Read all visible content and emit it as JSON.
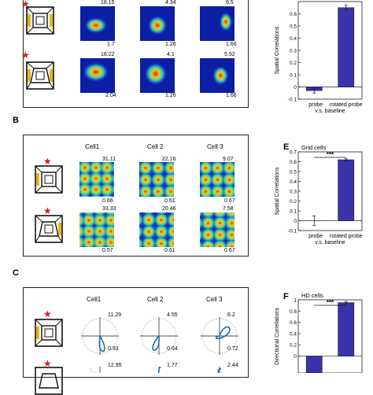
{
  "panels": {
    "A": {
      "label": "",
      "rows": [
        {
          "peaks": [
            "18.15",
            "4.34",
            "6.5"
          ],
          "mins": [
            "1.7",
            "1.26",
            "1.66"
          ]
        },
        {
          "peaks": [
            "16.22",
            "4.1",
            "5.92"
          ],
          "mins": [
            "2.04",
            "1.26",
            "1.66"
          ]
        }
      ]
    },
    "B": {
      "label": "B",
      "cells": [
        "Cell1",
        "Cell 2",
        "Cell 3"
      ],
      "rows": [
        {
          "peaks": [
            "31.11",
            "22.16",
            "9.07"
          ],
          "mins": [
            "0.66",
            "0.61",
            "0.67"
          ]
        },
        {
          "peaks": [
            "33.33",
            "20.46",
            "7.58"
          ],
          "mins": [
            "0.57",
            "0.61",
            "0.67"
          ]
        }
      ]
    },
    "C": {
      "label": "C",
      "cells": [
        "Cell1",
        "Cell 2",
        "Cell 3"
      ],
      "rows": [
        {
          "peaks": [
            "11.29",
            "4.55",
            "6.2"
          ],
          "mins": [
            "0.93",
            "0.64",
            "0.72"
          ]
        },
        {
          "peaks": [
            "12.95",
            "1.77",
            "2.44"
          ],
          "mins": []
        }
      ]
    },
    "D": {
      "ylabel": "Spatial Correlations",
      "xlabel_line1": "probe",
      "xlabel_line1b": "rotated probe",
      "xlabel_line2": "v.s. baseline"
    },
    "E": {
      "label": "E",
      "title": "Grid cells",
      "sig": "***",
      "ylabel": "Spatial Correlations",
      "xlabel_line1": "probe",
      "xlabel_line1b": "rotated probe",
      "xlabel_line2": "v.s. baseline"
    },
    "F": {
      "label": "F",
      "title": "HD cells",
      "sig": "***",
      "ylabel": "Directional Correlations"
    }
  },
  "chart_data": [
    {
      "panel": "D",
      "type": "bar",
      "categories": [
        "probe",
        "rotated probe"
      ],
      "values": [
        -0.03,
        0.65
      ],
      "errors": [
        0.02,
        0.02
      ],
      "ylim": [
        -0.1,
        0.7
      ],
      "yticks": [
        "-0.1",
        "0",
        "0.1",
        "0.2",
        "0.3",
        "0.4",
        "0.5",
        "0.6"
      ],
      "bar_color": "#3a32a8"
    },
    {
      "panel": "E",
      "type": "bar",
      "categories": [
        "probe",
        "rotated probe"
      ],
      "values": [
        0.0,
        0.62
      ],
      "errors": [
        0.05,
        0.01
      ],
      "ylim": [
        -0.1,
        0.7
      ],
      "yticks": [
        "-0.1",
        "0",
        "0.1",
        "0.2",
        "0.3",
        "0.4",
        "0.5",
        "0.6",
        "0.7"
      ],
      "bar_color": "#3a32a8"
    },
    {
      "panel": "F",
      "type": "bar",
      "categories": [
        "probe",
        "rotated probe"
      ],
      "values": [
        -0.3,
        0.95
      ],
      "errors": [
        0.0,
        0.02
      ],
      "ylim": [
        -0.3,
        1.0
      ],
      "yticks": [
        "1",
        "0.8",
        "0.6",
        "0.4",
        "0.2",
        "0"
      ],
      "bar_color": "#3a32a8"
    }
  ]
}
